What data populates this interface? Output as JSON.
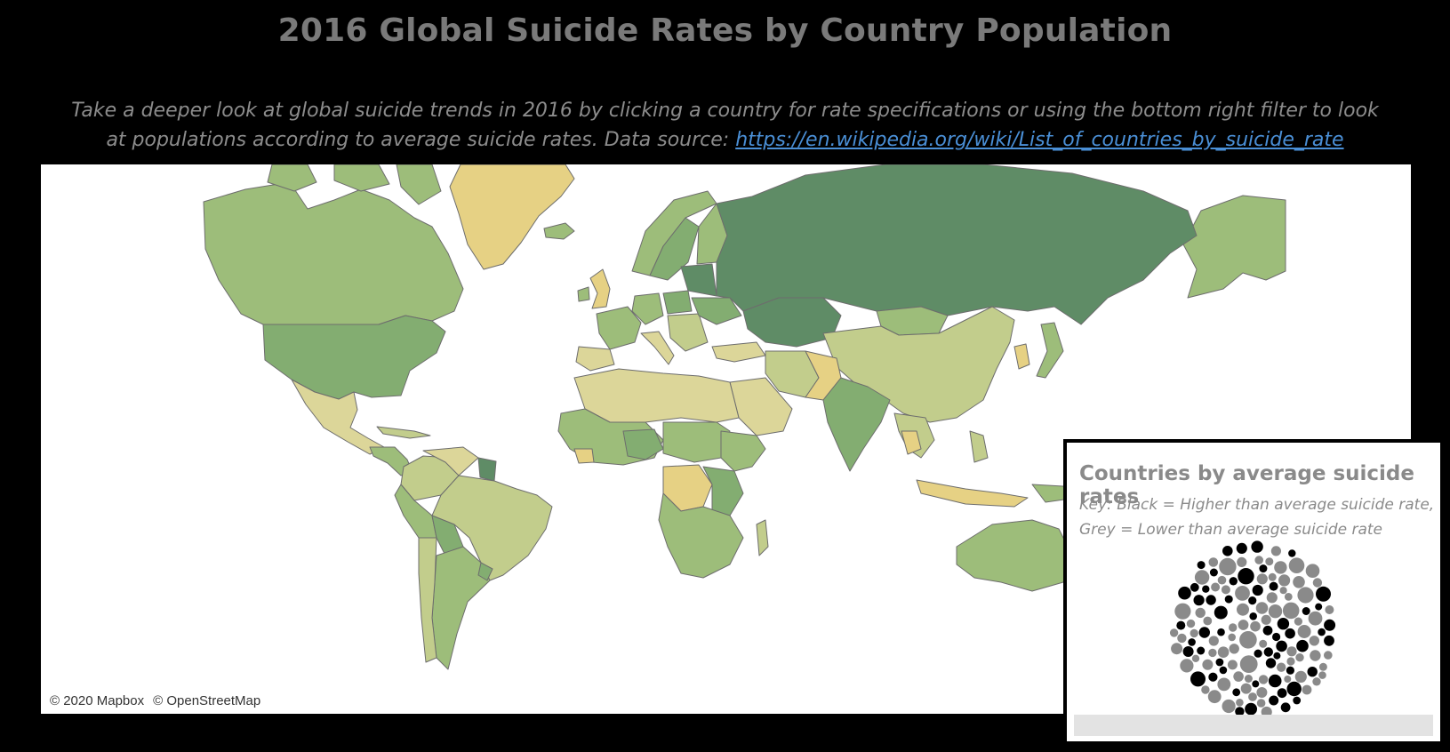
{
  "dashboard": {
    "title": "2016 Global Suicide Rates by Country Population",
    "subtitle_text": "Take a deeper look at global suicide trends in 2016 by clicking a country for rate specifications or using the bottom right filter to look at populations according to average suicide rates. Data source: ",
    "source_link": "https://en.wikipedia.org/wiki/List_of_countries_by_suicide_rate"
  },
  "map": {
    "attribution": [
      "© 2020 Mapbox",
      "© OpenStreetMap"
    ],
    "colors": {
      "dark": "#5f8c66",
      "mid": "#83ad71",
      "light": "#9dbd7a",
      "pale": "#c2cd8c",
      "tan": "#dcd699",
      "yellow": "#e6d184",
      "border": "#6d6d6d"
    }
  },
  "bubble_chart": {
    "title": "Countries by average suicide rates",
    "key_line1": "Key: Black = Higher than average suicide rate,",
    "key_line2": "Grey = Lower than average suicide rate",
    "colors": {
      "higher": "#000000",
      "lower": "#8a8a8a"
    },
    "filter_label": ""
  }
}
